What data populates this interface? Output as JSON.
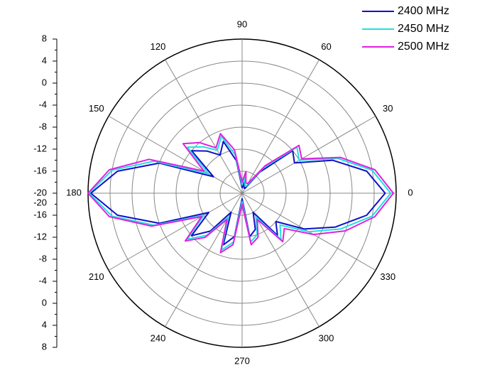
{
  "chart_data": {
    "type": "polar",
    "theta": [
      0,
      10,
      20,
      30,
      40,
      50,
      60,
      70,
      80,
      90,
      100,
      110,
      120,
      130,
      140,
      150,
      160,
      170,
      180,
      190,
      200,
      210,
      220,
      230,
      240,
      250,
      260,
      270,
      280,
      290,
      300,
      310,
      320,
      330,
      340,
      350
    ],
    "series": [
      {
        "name": "2400 MHz",
        "color": "#1010c8",
        "values": [
          6,
          3,
          -2.5,
          -9,
          -8,
          -15,
          -19,
          -19,
          -18,
          -19,
          -14,
          -10,
          -12,
          -10,
          -8,
          -14,
          -4,
          3,
          7.5,
          3,
          -4,
          -13,
          -8,
          -11,
          -16,
          -10,
          -12,
          -19,
          -12,
          -13,
          -16,
          -10,
          -12,
          -7,
          -2,
          3
        ]
      },
      {
        "name": "2450 MHz",
        "color": "#20e0e0",
        "values": [
          7,
          4,
          -1.5,
          -8,
          -7,
          -14,
          -18.5,
          -18.5,
          -17,
          -18.5,
          -13,
          -9,
          -11,
          -9,
          -7,
          -13,
          -3,
          4,
          7.8,
          4,
          -3,
          -12,
          -7,
          -10,
          -15,
          -9,
          -11,
          -18.5,
          -11,
          -12,
          -15,
          -9,
          -11,
          -6,
          -1,
          4
        ]
      },
      {
        "name": "2500 MHz",
        "color": "#e020e0",
        "values": [
          7.5,
          4.5,
          -1,
          -7.5,
          -6.5,
          -13.5,
          -18,
          -18,
          -16,
          -18,
          -12,
          -8.5,
          -10.5,
          -8,
          -6,
          -12,
          -2,
          4.5,
          8,
          4.5,
          -2.5,
          -11.5,
          -6.5,
          -9.5,
          -14.5,
          -8.5,
          -10.5,
          -18,
          -10.5,
          -11.5,
          -14.5,
          -8.5,
          -10,
          -5,
          0,
          4.5
        ]
      }
    ],
    "rlim": [
      -20,
      8
    ],
    "rticks": [
      -20,
      -16,
      -12,
      -8,
      -4,
      0,
      4,
      8
    ],
    "angle_ticks": [
      0,
      30,
      60,
      90,
      120,
      150,
      180,
      210,
      240,
      270,
      300,
      330
    ],
    "grid": true
  }
}
